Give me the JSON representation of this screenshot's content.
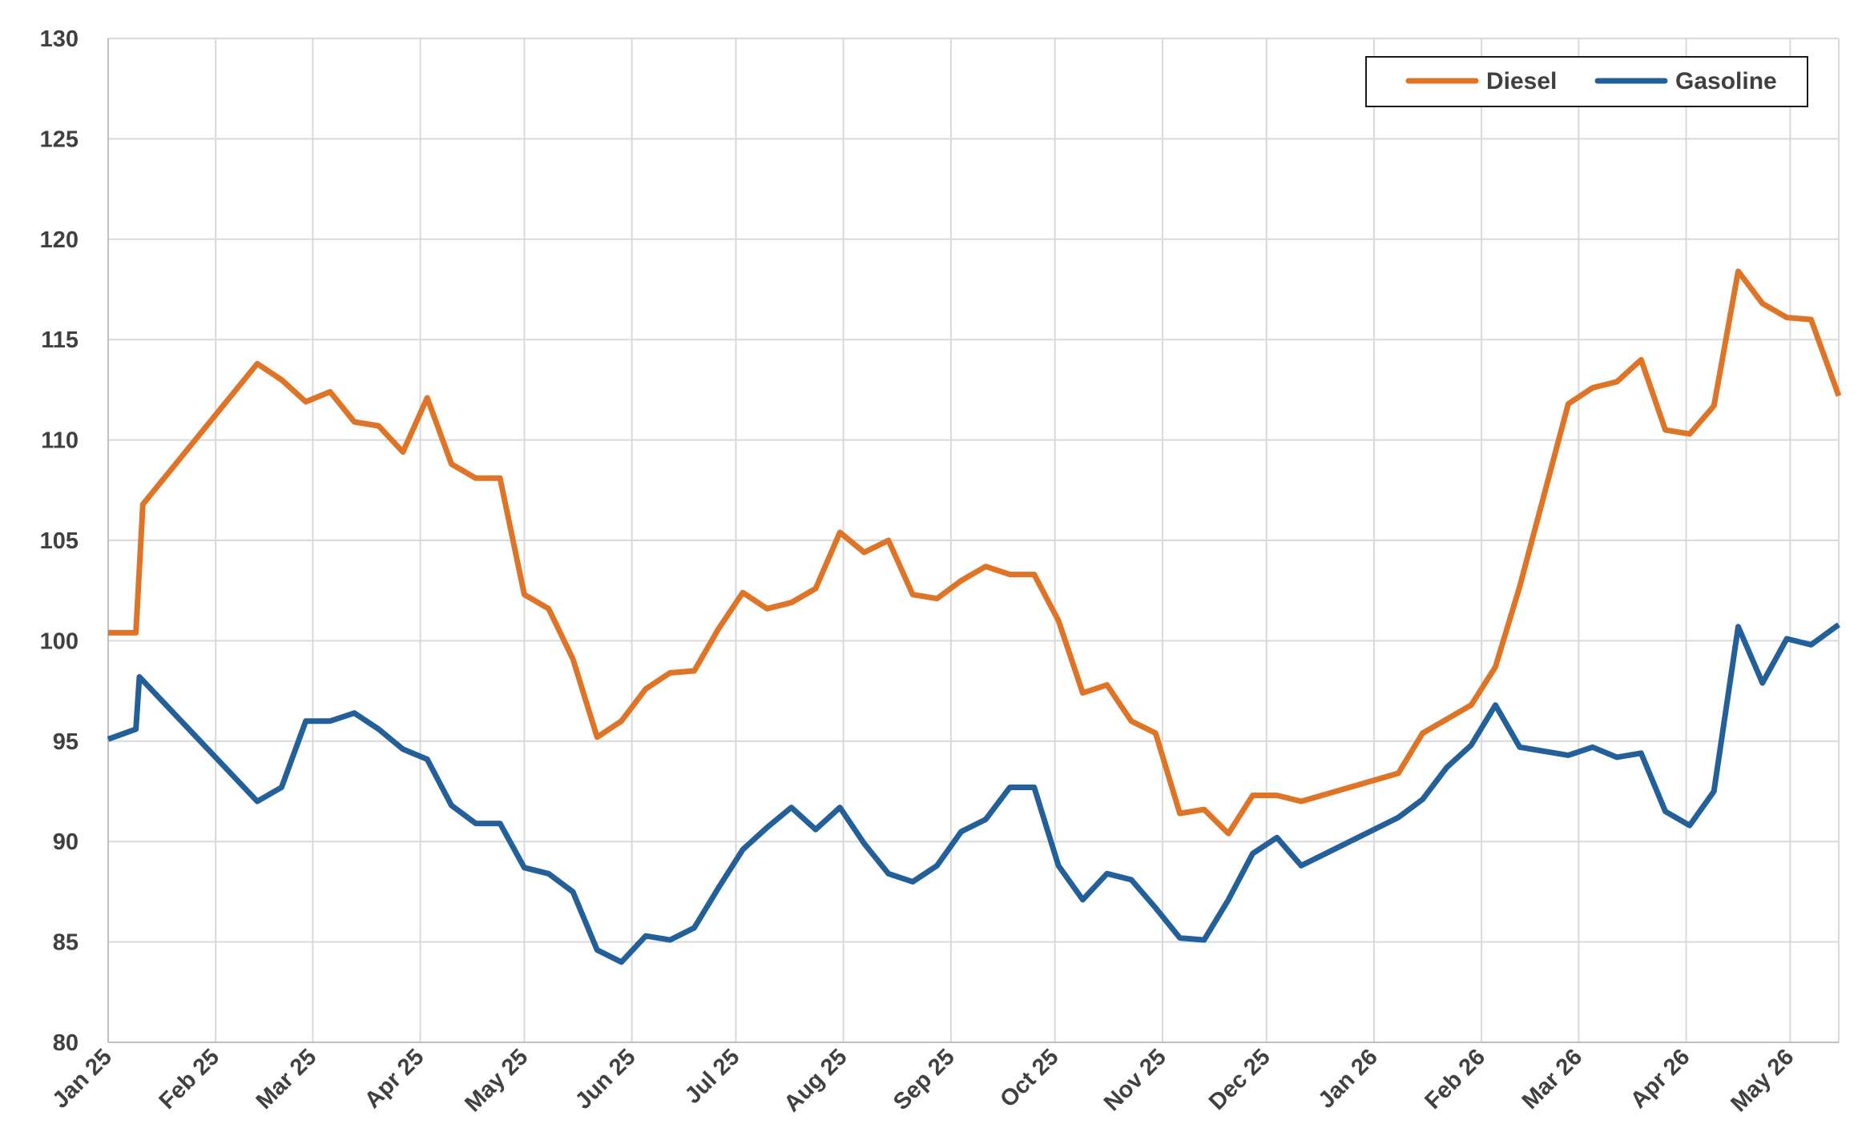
{
  "chart_data": {
    "type": "line",
    "title": "",
    "xlabel": "",
    "ylabel": "",
    "ylim": [
      80,
      130
    ],
    "yticks": [
      "80",
      "85",
      "90",
      "95",
      "100",
      "105",
      "110",
      "115",
      "120",
      "125",
      "130"
    ],
    "xlim": [
      "2025-01-01",
      "2026-05-15"
    ],
    "xtick_labels": [
      "Jan 25",
      "Feb 25",
      "Mar 25",
      "Apr 25",
      "May 25",
      "Jun 25",
      "Jul 25",
      "Aug 25",
      "Sep 25",
      "Oct 25",
      "Nov 25",
      "Dec 25",
      "Jan 26",
      "Feb 26",
      "Mar 26",
      "Apr 26",
      "May 26"
    ],
    "xtick_dates": [
      "2025-01-01",
      "2025-02-01",
      "2025-03-01",
      "2025-04-01",
      "2025-05-01",
      "2025-06-01",
      "2025-07-01",
      "2025-08-01",
      "2025-09-01",
      "2025-10-01",
      "2025-11-01",
      "2025-12-01",
      "2026-01-01",
      "2026-02-01",
      "2026-03-01",
      "2026-04-01",
      "2026-05-01"
    ],
    "grid": true,
    "legend_position": "top-right",
    "series": [
      {
        "name": "Diesel",
        "color": "#E07426",
        "points": [
          [
            "2025-01-01",
            100.4
          ],
          [
            "2025-01-09",
            100.4
          ],
          [
            "2025-01-11",
            106.8
          ],
          [
            "2025-02-13",
            113.8
          ],
          [
            "2025-02-20",
            113.0
          ],
          [
            "2025-02-27",
            111.9
          ],
          [
            "2025-03-06",
            112.4
          ],
          [
            "2025-03-13",
            110.9
          ],
          [
            "2025-03-20",
            110.7
          ],
          [
            "2025-03-27",
            109.4
          ],
          [
            "2025-04-03",
            112.1
          ],
          [
            "2025-04-10",
            108.8
          ],
          [
            "2025-04-17",
            108.1
          ],
          [
            "2025-04-24",
            108.1
          ],
          [
            "2025-05-01",
            102.3
          ],
          [
            "2025-05-08",
            101.6
          ],
          [
            "2025-05-15",
            99.1
          ],
          [
            "2025-05-22",
            95.2
          ],
          [
            "2025-05-29",
            96.0
          ],
          [
            "2025-06-05",
            97.6
          ],
          [
            "2025-06-12",
            98.4
          ],
          [
            "2025-06-19",
            98.5
          ],
          [
            "2025-06-26",
            100.6
          ],
          [
            "2025-07-03",
            102.4
          ],
          [
            "2025-07-10",
            101.6
          ],
          [
            "2025-07-17",
            101.9
          ],
          [
            "2025-07-24",
            102.6
          ],
          [
            "2025-07-31",
            105.4
          ],
          [
            "2025-08-07",
            104.4
          ],
          [
            "2025-08-14",
            105.0
          ],
          [
            "2025-08-21",
            102.3
          ],
          [
            "2025-08-28",
            102.1
          ],
          [
            "2025-09-04",
            103.0
          ],
          [
            "2025-09-11",
            103.7
          ],
          [
            "2025-09-18",
            103.3
          ],
          [
            "2025-09-25",
            103.3
          ],
          [
            "2025-10-02",
            101.0
          ],
          [
            "2025-10-09",
            97.4
          ],
          [
            "2025-10-16",
            97.8
          ],
          [
            "2025-10-23",
            96.0
          ],
          [
            "2025-10-30",
            95.4
          ],
          [
            "2025-11-06",
            91.4
          ],
          [
            "2025-11-13",
            91.6
          ],
          [
            "2025-11-20",
            90.4
          ],
          [
            "2025-11-27",
            92.3
          ],
          [
            "2025-12-04",
            92.3
          ],
          [
            "2025-12-11",
            92.0
          ],
          [
            "2026-01-08",
            93.4
          ],
          [
            "2026-01-15",
            95.4
          ],
          [
            "2026-01-29",
            96.8
          ],
          [
            "2026-02-05",
            98.7
          ],
          [
            "2026-02-12",
            102.7
          ],
          [
            "2026-02-26",
            111.8
          ],
          [
            "2026-03-05",
            112.6
          ],
          [
            "2026-03-12",
            112.9
          ],
          [
            "2026-03-19",
            114.0
          ],
          [
            "2026-03-26",
            110.5
          ],
          [
            "2026-04-02",
            110.3
          ],
          [
            "2026-04-09",
            111.7
          ],
          [
            "2026-04-16",
            118.4
          ],
          [
            "2026-04-23",
            116.8
          ],
          [
            "2026-04-30",
            116.1
          ],
          [
            "2026-05-07",
            116.0
          ],
          [
            "2026-05-15",
            112.2
          ]
        ]
      },
      {
        "name": "Gasoline",
        "color": "#23609A",
        "points": [
          [
            "2025-01-01",
            95.1
          ],
          [
            "2025-01-09",
            95.6
          ],
          [
            "2025-01-10",
            98.2
          ],
          [
            "2025-02-13",
            92.0
          ],
          [
            "2025-02-20",
            92.7
          ],
          [
            "2025-02-27",
            96.0
          ],
          [
            "2025-03-06",
            96.0
          ],
          [
            "2025-03-13",
            96.4
          ],
          [
            "2025-03-20",
            95.6
          ],
          [
            "2025-03-27",
            94.6
          ],
          [
            "2025-04-03",
            94.1
          ],
          [
            "2025-04-10",
            91.8
          ],
          [
            "2025-04-17",
            90.9
          ],
          [
            "2025-04-24",
            90.9
          ],
          [
            "2025-05-01",
            88.7
          ],
          [
            "2025-05-08",
            88.4
          ],
          [
            "2025-05-15",
            87.5
          ],
          [
            "2025-05-22",
            84.6
          ],
          [
            "2025-05-29",
            84.0
          ],
          [
            "2025-06-05",
            85.3
          ],
          [
            "2025-06-12",
            85.1
          ],
          [
            "2025-06-19",
            85.7
          ],
          [
            "2025-06-26",
            87.7
          ],
          [
            "2025-07-03",
            89.6
          ],
          [
            "2025-07-10",
            90.7
          ],
          [
            "2025-07-17",
            91.7
          ],
          [
            "2025-07-24",
            90.6
          ],
          [
            "2025-07-31",
            91.7
          ],
          [
            "2025-08-07",
            89.9
          ],
          [
            "2025-08-14",
            88.4
          ],
          [
            "2025-08-21",
            88.0
          ],
          [
            "2025-08-28",
            88.8
          ],
          [
            "2025-09-04",
            90.5
          ],
          [
            "2025-09-11",
            91.1
          ],
          [
            "2025-09-18",
            92.7
          ],
          [
            "2025-09-25",
            92.7
          ],
          [
            "2025-10-02",
            88.8
          ],
          [
            "2025-10-09",
            87.1
          ],
          [
            "2025-10-16",
            88.4
          ],
          [
            "2025-10-23",
            88.1
          ],
          [
            "2025-10-30",
            86.7
          ],
          [
            "2025-11-06",
            85.2
          ],
          [
            "2025-11-13",
            85.1
          ],
          [
            "2025-11-20",
            87.1
          ],
          [
            "2025-11-27",
            89.4
          ],
          [
            "2025-12-04",
            90.2
          ],
          [
            "2025-12-11",
            88.8
          ],
          [
            "2026-01-08",
            91.2
          ],
          [
            "2026-01-15",
            92.1
          ],
          [
            "2026-01-22",
            93.7
          ],
          [
            "2026-01-29",
            94.8
          ],
          [
            "2026-02-05",
            96.8
          ],
          [
            "2026-02-12",
            94.7
          ],
          [
            "2026-02-26",
            94.3
          ],
          [
            "2026-03-05",
            94.7
          ],
          [
            "2026-03-12",
            94.2
          ],
          [
            "2026-03-19",
            94.4
          ],
          [
            "2026-03-26",
            91.5
          ],
          [
            "2026-04-02",
            90.8
          ],
          [
            "2026-04-09",
            92.5
          ],
          [
            "2026-04-16",
            100.7
          ],
          [
            "2026-04-23",
            97.9
          ],
          [
            "2026-04-30",
            100.1
          ],
          [
            "2026-05-07",
            99.8
          ],
          [
            "2026-05-15",
            100.8
          ]
        ]
      }
    ]
  }
}
